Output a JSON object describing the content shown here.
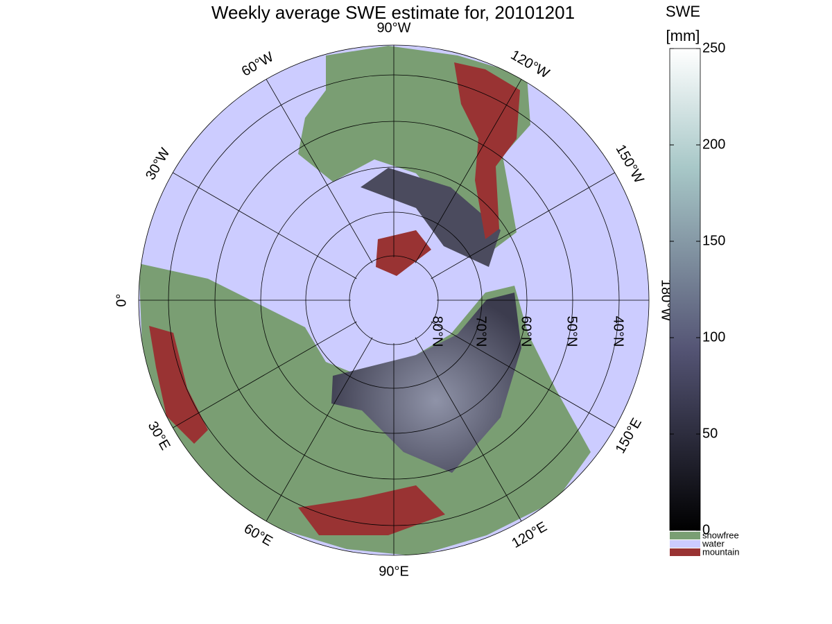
{
  "title": "Weekly average SWE estimate for, 20101201",
  "meridian_labels": [
    "0°",
    "30°E",
    "60°E",
    "90°E",
    "120°E",
    "150°E",
    "180°W",
    "150°W",
    "120°W",
    "90°W",
    "60°W",
    "30°W"
  ],
  "parallel_labels": [
    "80°N",
    "70°N",
    "60°N",
    "50°N",
    "40°N"
  ],
  "colorbar": {
    "label": "SWE",
    "unit": "[mm]",
    "ylim": [
      0,
      250
    ],
    "yticks": [
      0,
      50,
      100,
      150,
      200,
      250
    ]
  },
  "legend": [
    {
      "name": "snowfree",
      "color": "#7a9e73"
    },
    {
      "name": "water",
      "color": "#ccccff"
    },
    {
      "name": "mountain",
      "color": "#993333"
    }
  ]
}
